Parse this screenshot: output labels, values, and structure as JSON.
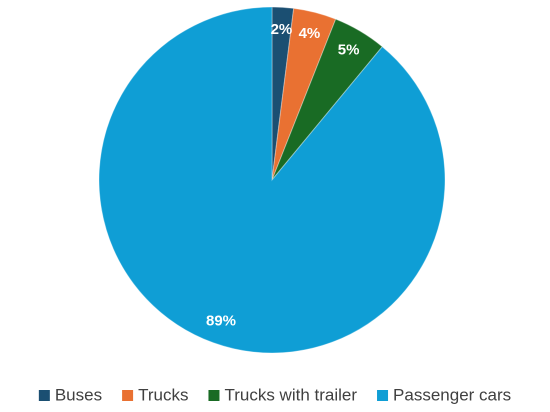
{
  "chart_data": {
    "type": "pie",
    "categories": [
      "Buses",
      "Trucks",
      "Trucks with trailer",
      "Passenger cars"
    ],
    "values": [
      2,
      4,
      5,
      89
    ],
    "value_labels": [
      "2%",
      "4%",
      "5%",
      "89%"
    ],
    "colors": [
      "#1b4f72",
      "#e97132",
      "#196b24",
      "#0f9ed5"
    ],
    "legend": "bottom"
  }
}
